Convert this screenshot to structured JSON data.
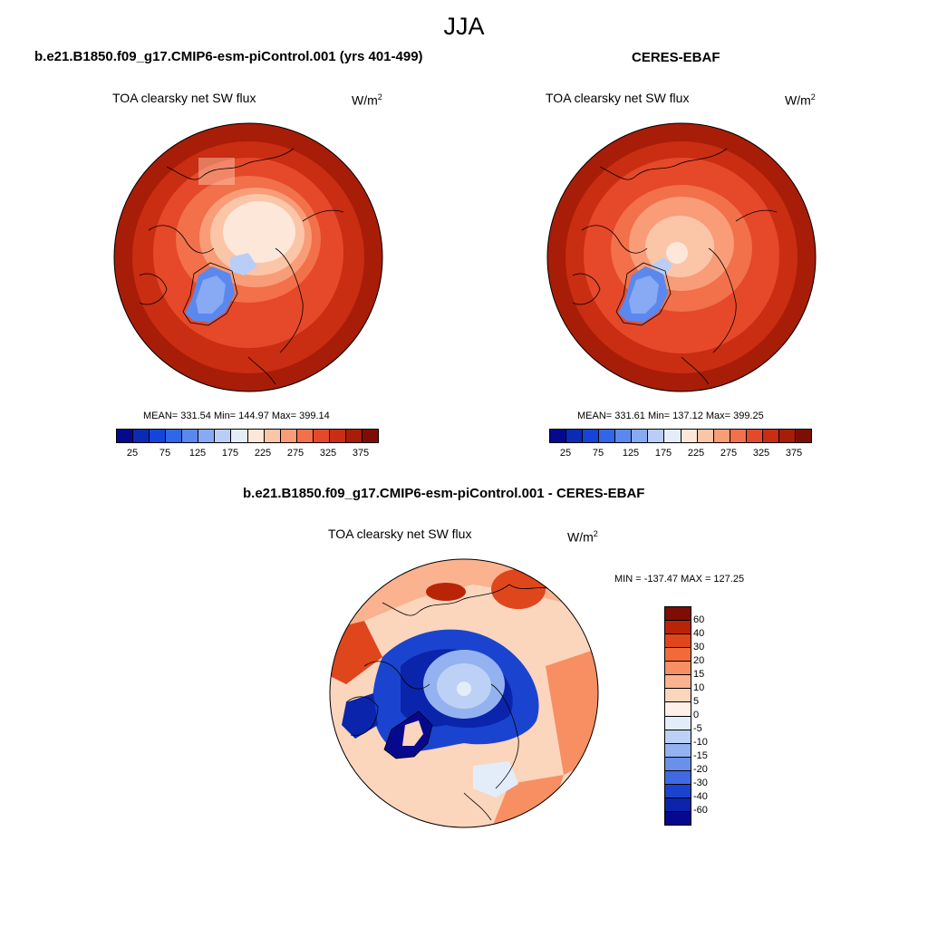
{
  "season": "JJA",
  "panels": {
    "left": {
      "case": "b.e21.B1850.f09_g17.CMIP6-esm-piControl.001 (yrs 401-499)",
      "variable": "TOA clearsky net SW flux",
      "unit_base": "W/m",
      "unit_exp": "2",
      "stats": "MEAN= 331.54  Min= 144.97  Max= 399.14"
    },
    "right": {
      "case": "CERES-EBAF",
      "variable": "TOA clearsky net SW flux",
      "unit_base": "W/m",
      "unit_exp": "2",
      "stats": "MEAN= 331.61  Min= 137.12  Max= 399.25"
    },
    "diff": {
      "case": "b.e21.B1850.f09_g17.CMIP6-esm-piControl.001 - CERES-EBAF",
      "variable": "TOA clearsky net SW flux",
      "unit_base": "W/m",
      "unit_exp": "2",
      "stats": "MIN = -137.47 MAX = 127.25"
    }
  },
  "colorbar_abs": {
    "ticks": [
      "25",
      "75",
      "125",
      "175",
      "225",
      "275",
      "325",
      "375"
    ],
    "colors": [
      "#06098e",
      "#0a2bb6",
      "#1445d8",
      "#3067e6",
      "#5b88ee",
      "#88aaf4",
      "#b9cef7",
      "#e4eefa",
      "#fde7d8",
      "#fbc5a8",
      "#f89d77",
      "#f2704a",
      "#e6482a",
      "#c92d12",
      "#a81d07",
      "#7e0d03"
    ]
  },
  "colorbar_diff": {
    "ticks": [
      "60",
      "40",
      "30",
      "20",
      "15",
      "10",
      "5",
      "0",
      "-5",
      "-10",
      "-15",
      "-20",
      "-30",
      "-40",
      "-60"
    ],
    "colors": [
      "#7e0d03",
      "#b82405",
      "#e0461c",
      "#f26a3a",
      "#f78f63",
      "#fab28f",
      "#fcd5bd",
      "#fdf0e8",
      "#e3edf9",
      "#bdd1f6",
      "#94b2f0",
      "#6b90ea",
      "#3f6ae2",
      "#1a44cf",
      "#0a24ab",
      "#06098e"
    ]
  },
  "map_colors": {
    "dark_red": "#a81d07",
    "red": "#c92d12",
    "orange_red": "#e6482a",
    "orange": "#f2704a",
    "salmon": "#f89d77",
    "peach": "#fbc5a8",
    "cream": "#fde7d8",
    "light_blue": "#b9cef7",
    "blue": "#5b88ee",
    "deep_blue": "#0a2bb6"
  }
}
